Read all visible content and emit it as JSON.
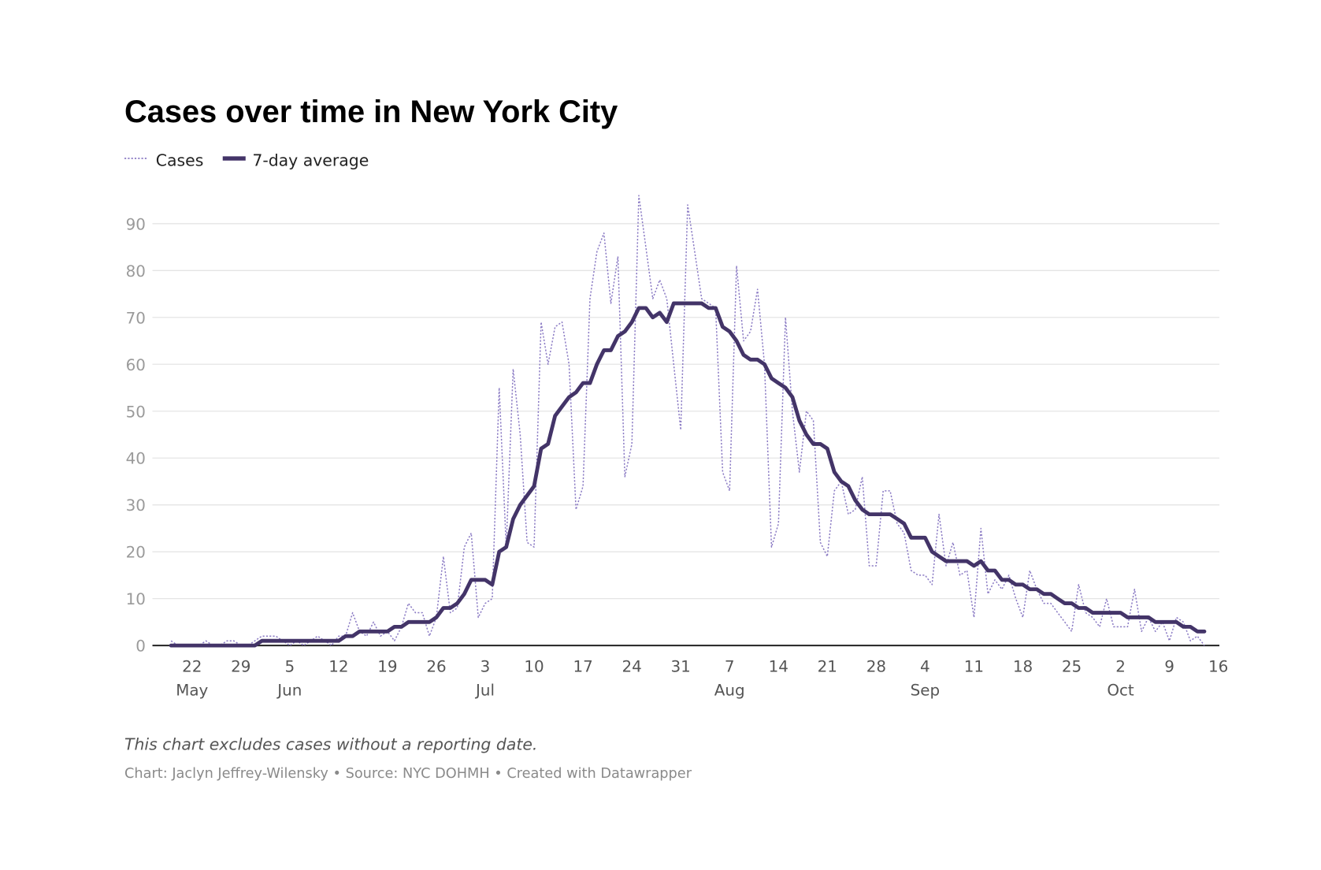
{
  "chart_data": {
    "type": "line",
    "title": "Cases over time in New York City",
    "legend_placement": "top-left",
    "colors": {
      "cases": "#8b7bc4",
      "average": "#433468",
      "grid": "#e4e4e4",
      "baseline": "#222222"
    },
    "series": [
      {
        "name": "Cases",
        "style": "dotted",
        "values": [
          1,
          0,
          0,
          0,
          0,
          1,
          0,
          0,
          1,
          1,
          0,
          0,
          1,
          2,
          2,
          2,
          1,
          0,
          1,
          0,
          1,
          2,
          1,
          0,
          2,
          2,
          7,
          3,
          2,
          5,
          2,
          3,
          1,
          4,
          9,
          7,
          7,
          2,
          6,
          19,
          7,
          8,
          21,
          24,
          6,
          9,
          10,
          55,
          21,
          59,
          45,
          22,
          21,
          69,
          60,
          68,
          69,
          60,
          29,
          34,
          74,
          84,
          88,
          73,
          83,
          36,
          43,
          96,
          85,
          74,
          78,
          74,
          60,
          46,
          94,
          84,
          74,
          73,
          72,
          37,
          33,
          81,
          65,
          67,
          76,
          60,
          21,
          26,
          70,
          50,
          37,
          50,
          48,
          22,
          19,
          33,
          35,
          28,
          29,
          36,
          17,
          17,
          33,
          33,
          26,
          24,
          16,
          15,
          15,
          13,
          28,
          17,
          22,
          15,
          16,
          6,
          25,
          11,
          14,
          12,
          15,
          10,
          6,
          16,
          12,
          9,
          9,
          7,
          5,
          3,
          13,
          7,
          6,
          4,
          10,
          4,
          4,
          4,
          12,
          3,
          6,
          3,
          5,
          1,
          6,
          5,
          1,
          2,
          0
        ]
      },
      {
        "name": "7-day average",
        "style": "solid",
        "values": [
          0,
          0,
          0,
          0,
          0,
          0,
          0,
          0,
          0,
          0,
          0,
          0,
          0,
          1,
          1,
          1,
          1,
          1,
          1,
          1,
          1,
          1,
          1,
          1,
          1,
          2,
          2,
          3,
          3,
          3,
          3,
          3,
          4,
          4,
          5,
          5,
          5,
          5,
          6,
          8,
          8,
          9,
          11,
          14,
          14,
          14,
          13,
          20,
          21,
          27,
          30,
          32,
          34,
          42,
          43,
          49,
          51,
          53,
          54,
          56,
          56,
          60,
          63,
          63,
          66,
          67,
          69,
          72,
          72,
          70,
          71,
          69,
          73,
          73,
          73,
          73,
          73,
          72,
          72,
          68,
          67,
          65,
          62,
          61,
          61,
          60,
          57,
          56,
          55,
          53,
          48,
          45,
          43,
          43,
          42,
          37,
          35,
          34,
          31,
          29,
          28,
          28,
          28,
          28,
          27,
          26,
          23,
          23,
          23,
          20,
          19,
          18,
          18,
          18,
          18,
          17,
          18,
          16,
          16,
          14,
          14,
          13,
          13,
          12,
          12,
          11,
          11,
          10,
          9,
          9,
          8,
          8,
          7,
          7,
          7,
          7,
          7,
          6,
          6,
          6,
          6,
          5,
          5,
          5,
          5,
          4,
          4,
          3,
          3
        ]
      }
    ],
    "x": [
      "May 19",
      "May 20",
      "May 21",
      "May 22",
      "May 23",
      "May 24",
      "May 25",
      "May 26",
      "May 27",
      "May 28",
      "May 29",
      "May 30",
      "May 31",
      "Jun 1",
      "Jun 2",
      "Jun 3",
      "Jun 4",
      "Jun 5",
      "Jun 6",
      "Jun 7",
      "Jun 8",
      "Jun 9",
      "Jun 10",
      "Jun 11",
      "Jun 12",
      "Jun 13",
      "Jun 14",
      "Jun 15",
      "Jun 16",
      "Jun 17",
      "Jun 18",
      "Jun 19",
      "Jun 20",
      "Jun 21",
      "Jun 22",
      "Jun 23",
      "Jun 24",
      "Jun 25",
      "Jun 26",
      "Jun 27",
      "Jun 28",
      "Jun 29",
      "Jun 30",
      "Jul 1",
      "Jul 2",
      "Jul 3",
      "Jul 4",
      "Jul 5",
      "Jul 6",
      "Jul 7",
      "Jul 8",
      "Jul 9",
      "Jul 10",
      "Jul 11",
      "Jul 12",
      "Jul 13",
      "Jul 14",
      "Jul 15",
      "Jul 16",
      "Jul 17",
      "Jul 18",
      "Jul 19",
      "Jul 20",
      "Jul 21",
      "Jul 22",
      "Jul 23",
      "Jul 24",
      "Jul 25",
      "Jul 26",
      "Jul 27",
      "Jul 28",
      "Jul 29",
      "Jul 30",
      "Jul 31",
      "Aug 1",
      "Aug 2",
      "Aug 3",
      "Aug 4",
      "Aug 5",
      "Aug 6",
      "Aug 7",
      "Aug 8",
      "Aug 9",
      "Aug 10",
      "Aug 11",
      "Aug 12",
      "Aug 13",
      "Aug 14",
      "Aug 15",
      "Aug 16",
      "Aug 17",
      "Aug 18",
      "Aug 19",
      "Aug 20",
      "Aug 21",
      "Aug 22",
      "Aug 23",
      "Aug 24",
      "Aug 25",
      "Aug 26",
      "Aug 27",
      "Aug 28",
      "Aug 29",
      "Aug 30",
      "Aug 31",
      "Sep 1",
      "Sep 2",
      "Sep 3",
      "Sep 4",
      "Sep 5",
      "Sep 6",
      "Sep 7",
      "Sep 8",
      "Sep 9",
      "Sep 10",
      "Sep 11",
      "Sep 12",
      "Sep 13",
      "Sep 14",
      "Sep 15",
      "Sep 16",
      "Sep 17",
      "Sep 18",
      "Sep 19",
      "Sep 20",
      "Sep 21",
      "Sep 22",
      "Sep 23",
      "Sep 24",
      "Sep 25",
      "Sep 26",
      "Sep 27",
      "Sep 28",
      "Sep 29",
      "Sep 30",
      "Oct 1",
      "Oct 2",
      "Oct 3",
      "Oct 4",
      "Oct 5",
      "Oct 6",
      "Oct 7",
      "Oct 8",
      "Oct 9",
      "Oct 10",
      "Oct 11",
      "Oct 12",
      "Oct 13",
      "Oct 14"
    ],
    "ylim": [
      0,
      90
    ],
    "y_ticks": [
      0,
      10,
      20,
      30,
      40,
      50,
      60,
      70,
      80,
      90
    ],
    "grid": true,
    "x_ticks": [
      {
        "date": "May 22",
        "label": "22",
        "month": "May"
      },
      {
        "date": "May 29",
        "label": "29",
        "month": ""
      },
      {
        "date": "Jun 5",
        "label": "5",
        "month": "Jun"
      },
      {
        "date": "Jun 12",
        "label": "12",
        "month": ""
      },
      {
        "date": "Jun 19",
        "label": "19",
        "month": ""
      },
      {
        "date": "Jun 26",
        "label": "26",
        "month": ""
      },
      {
        "date": "Jul 3",
        "label": "3",
        "month": "Jul"
      },
      {
        "date": "Jul 10",
        "label": "10",
        "month": ""
      },
      {
        "date": "Jul 17",
        "label": "17",
        "month": ""
      },
      {
        "date": "Jul 24",
        "label": "24",
        "month": ""
      },
      {
        "date": "Jul 31",
        "label": "31",
        "month": ""
      },
      {
        "date": "Aug 7",
        "label": "7",
        "month": "Aug"
      },
      {
        "date": "Aug 14",
        "label": "14",
        "month": ""
      },
      {
        "date": "Aug 21",
        "label": "21",
        "month": ""
      },
      {
        "date": "Aug 28",
        "label": "28",
        "month": ""
      },
      {
        "date": "Sep 4",
        "label": "4",
        "month": "Sep"
      },
      {
        "date": "Sep 11",
        "label": "11",
        "month": ""
      },
      {
        "date": "Sep 18",
        "label": "18",
        "month": ""
      },
      {
        "date": "Sep 25",
        "label": "25",
        "month": ""
      },
      {
        "date": "Oct 2",
        "label": "2",
        "month": "Oct"
      },
      {
        "date": "Oct 9",
        "label": "9",
        "month": ""
      },
      {
        "date": "Oct 16",
        "label": "16",
        "month": ""
      }
    ]
  },
  "legend": {
    "cases": "Cases",
    "average": "7-day average"
  },
  "footer": {
    "note": "This chart excludes cases without a reporting date.",
    "credit": "Chart: Jaclyn Jeffrey-Wilensky • Source: NYC DOHMH • Created with Datawrapper"
  }
}
